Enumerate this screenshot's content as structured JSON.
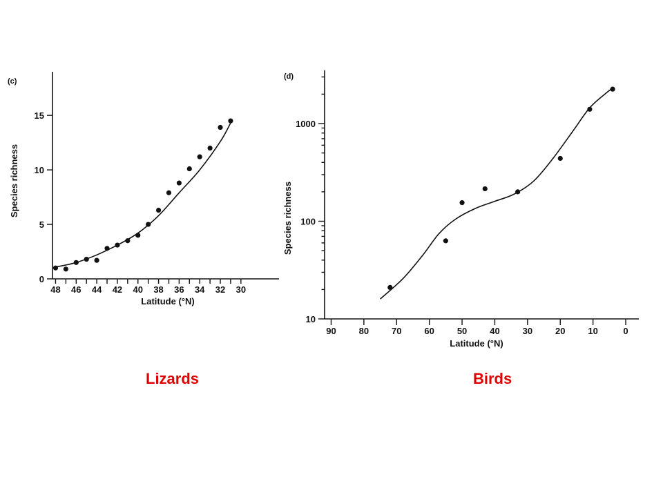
{
  "colors": {
    "caption": "#e00000",
    "ink": "#111111"
  },
  "captions": {
    "left": "Lizards",
    "right": "Birds"
  },
  "chart_data": [
    {
      "type": "scatter",
      "panel_label": "(c)",
      "title": "",
      "xlabel": "Latitude (°N)",
      "ylabel": "Species richness",
      "xlim": [
        48.3,
        26.3
      ],
      "ylim": [
        0,
        19
      ],
      "x_reversed": true,
      "xticks": [
        48,
        47,
        46,
        45,
        44,
        43,
        42,
        41,
        40,
        39,
        38,
        37,
        36,
        35,
        34,
        33,
        32,
        31,
        30
      ],
      "xtick_labels": [
        "48",
        "",
        "46",
        "",
        "44",
        "",
        "42",
        "",
        "40",
        "",
        "38",
        "",
        "36",
        "",
        "34",
        "",
        "32",
        "",
        "30"
      ],
      "yticks": [
        0,
        5,
        10,
        15
      ],
      "ytick_labels": [
        "0",
        "5",
        "10",
        "15"
      ],
      "grid": false,
      "points": {
        "x": [
          48,
          47,
          46,
          45,
          44,
          43,
          42,
          41,
          40,
          39,
          38,
          37,
          36,
          35,
          34,
          33,
          32,
          31
        ],
        "y": [
          1.0,
          0.9,
          1.5,
          1.8,
          1.7,
          2.8,
          3.1,
          3.5,
          4.0,
          5.0,
          6.3,
          7.9,
          8.8,
          10.1,
          11.2,
          12.0,
          13.9,
          14.5
        ]
      },
      "fit_curve": {
        "x": [
          47.9,
          46,
          44,
          42,
          40,
          38,
          36,
          34,
          32,
          31
        ],
        "y": [
          1.1,
          1.5,
          2.2,
          3.1,
          4.2,
          5.8,
          7.9,
          10.0,
          12.6,
          14.3
        ]
      }
    },
    {
      "type": "scatter",
      "panel_label": "(d)",
      "title": "",
      "xlabel": "Latitude (°N)",
      "ylabel": "Species richness",
      "xlim": [
        92,
        -4
      ],
      "ylim": [
        10,
        3500
      ],
      "y_scale": "log",
      "x_reversed": true,
      "xticks": [
        90,
        80,
        70,
        60,
        50,
        40,
        30,
        20,
        10,
        0
      ],
      "xtick_labels": [
        "90",
        "80",
        "70",
        "60",
        "50",
        "40",
        "30",
        "20",
        "10",
        "0"
      ],
      "yticks": [
        10,
        100,
        1000
      ],
      "ytick_labels": [
        "10",
        "100",
        "1000"
      ],
      "grid": false,
      "points": {
        "x": [
          72,
          55,
          50,
          43,
          33,
          20,
          11,
          4
        ],
        "y": [
          21,
          63,
          155,
          215,
          200,
          440,
          1400,
          2250
        ]
      },
      "fit_curve": {
        "x": [
          75,
          68,
          62,
          57,
          52,
          46,
          40,
          34,
          28,
          22,
          16,
          11,
          6,
          4
        ],
        "y": [
          16,
          26,
          45,
          75,
          105,
          135,
          160,
          190,
          260,
          450,
          850,
          1450,
          2050,
          2300
        ]
      }
    }
  ]
}
